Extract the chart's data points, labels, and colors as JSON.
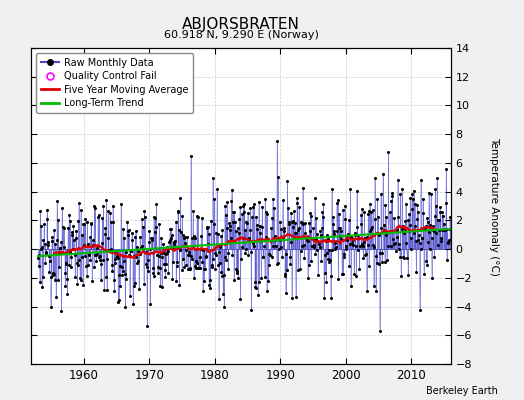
{
  "title": "ABJORSBRATEN",
  "subtitle": "60.918 N, 9.290 E (Norway)",
  "ylabel": "Temperature Anomaly (°C)",
  "credit": "Berkeley Earth",
  "xlim": [
    1952,
    2016
  ],
  "ylim": [
    -8,
    14
  ],
  "yticks": [
    -8,
    -6,
    -4,
    -2,
    0,
    2,
    4,
    6,
    8,
    10,
    12,
    14
  ],
  "xticks": [
    1960,
    1970,
    1980,
    1990,
    2000,
    2010
  ],
  "bg_color": "#f0f0f0",
  "plot_bg": "#ffffff",
  "line_color": "#4444cc",
  "ma_color": "#dd0000",
  "trend_color": "#00bb00",
  "qc_color": "magenta",
  "seed": 37,
  "n_years": 63,
  "start_year": 1953
}
